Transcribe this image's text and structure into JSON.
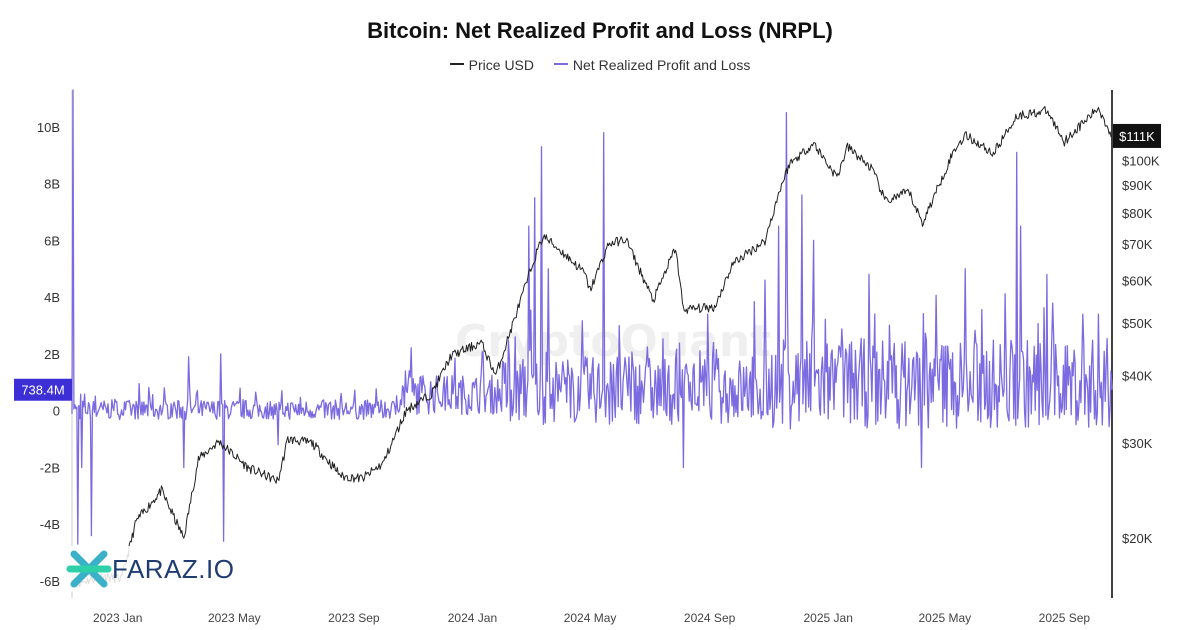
{
  "chart_data": {
    "type": "line",
    "title": "Bitcoin: Net Realized Profit and Loss (NRPL)",
    "legend": [
      {
        "name": "Price USD",
        "color": "#222222"
      },
      {
        "name": "Net Realized Profit and Loss",
        "color": "#7b6ae0"
      }
    ],
    "legend_position": "top-center",
    "x_ticks": [
      "2023 Jan",
      "2023 May",
      "2023 Sep",
      "2024 Jan",
      "2024 May",
      "2024 Sep",
      "2025 Jan",
      "2025 May",
      "2025 Sep"
    ],
    "x_range": [
      "2022-11-15",
      "2025-10-20"
    ],
    "y_left": {
      "ticks": [
        "10B",
        "8B",
        "6B",
        "4B",
        "2B",
        "0",
        "-2B",
        "-4B",
        "-6B"
      ],
      "values": [
        10,
        8,
        6,
        4,
        2,
        0,
        -2,
        -4,
        -6
      ],
      "range_billion": [
        -6.6,
        11.3
      ]
    },
    "y_right": {
      "scale": "log",
      "ticks": [
        "$100K",
        "$90K",
        "$80K",
        "$70K",
        "$60K",
        "$50K",
        "$40K",
        "$30K",
        "$20K"
      ],
      "values": [
        100000,
        90000,
        80000,
        70000,
        60000,
        50000,
        40000,
        30000,
        20000
      ],
      "range_usd": [
        15500,
        135000
      ]
    },
    "last_value_labels": {
      "nrpl": "738.4M",
      "price": "$111K"
    },
    "series": [
      {
        "name": "Price USD",
        "unit": "USD",
        "color": "#222222",
        "points": [
          [
            "2022-11-20",
            16500
          ],
          [
            "2022-12-15",
            17000
          ],
          [
            "2023-01-05",
            16800
          ],
          [
            "2023-01-20",
            21500
          ],
          [
            "2023-02-15",
            24500
          ],
          [
            "2023-03-10",
            20000
          ],
          [
            "2023-03-25",
            28000
          ],
          [
            "2023-04-15",
            30200
          ],
          [
            "2023-05-15",
            27000
          ],
          [
            "2023-06-15",
            25500
          ],
          [
            "2023-06-25",
            30500
          ],
          [
            "2023-07-20",
            30000
          ],
          [
            "2023-08-20",
            26000
          ],
          [
            "2023-09-10",
            25800
          ],
          [
            "2023-10-01",
            27500
          ],
          [
            "2023-10-25",
            34500
          ],
          [
            "2023-11-20",
            37000
          ],
          [
            "2023-12-10",
            43500
          ],
          [
            "2024-01-10",
            46000
          ],
          [
            "2024-01-25",
            40000
          ],
          [
            "2024-02-15",
            52000
          ],
          [
            "2024-03-05",
            66000
          ],
          [
            "2024-03-14",
            72500
          ],
          [
            "2024-04-05",
            67000
          ],
          [
            "2024-04-25",
            62000
          ],
          [
            "2024-05-01",
            57500
          ],
          [
            "2024-05-20",
            70000
          ],
          [
            "2024-06-07",
            71500
          ],
          [
            "2024-07-05",
            55000
          ],
          [
            "2024-07-28",
            69000
          ],
          [
            "2024-08-05",
            53000
          ],
          [
            "2024-09-06",
            53500
          ],
          [
            "2024-09-25",
            64500
          ],
          [
            "2024-10-28",
            71000
          ],
          [
            "2024-11-12",
            88000
          ],
          [
            "2024-11-22",
            98500
          ],
          [
            "2024-12-17",
            107500
          ],
          [
            "2025-01-10",
            93000
          ],
          [
            "2025-01-21",
            106000
          ],
          [
            "2025-02-15",
            96500
          ],
          [
            "2025-03-01",
            84000
          ],
          [
            "2025-03-25",
            87500
          ],
          [
            "2025-04-08",
            76500
          ],
          [
            "2025-05-10",
            104000
          ],
          [
            "2025-05-22",
            111500
          ],
          [
            "2025-06-20",
            103000
          ],
          [
            "2025-07-14",
            121000
          ],
          [
            "2025-08-14",
            123500
          ],
          [
            "2025-09-01",
            108500
          ],
          [
            "2025-10-06",
            125000
          ],
          [
            "2025-10-20",
            111000
          ]
        ]
      },
      {
        "name": "Net Realized Profit and Loss",
        "unit": "billion USD",
        "color": "#7b6ae0",
        "spikes": [
          [
            "2022-11-16",
            11.3
          ],
          [
            "2022-11-21",
            -4.7
          ],
          [
            "2022-11-25",
            -2.0
          ],
          [
            "2022-12-05",
            -4.4
          ],
          [
            "2023-03-10",
            -2.0
          ],
          [
            "2023-03-15",
            1.9
          ],
          [
            "2023-04-17",
            2.0
          ],
          [
            "2023-04-20",
            -4.6
          ],
          [
            "2023-06-15",
            -1.2
          ],
          [
            "2023-10-24",
            1.4
          ],
          [
            "2023-12-06",
            1.2
          ],
          [
            "2024-01-10",
            1.3
          ],
          [
            "2024-02-14",
            2.6
          ],
          [
            "2024-02-28",
            6.5
          ],
          [
            "2024-03-05",
            7.5
          ],
          [
            "2024-03-12",
            9.3
          ],
          [
            "2024-03-19",
            5.0
          ],
          [
            "2024-04-12",
            1.5
          ],
          [
            "2024-05-15",
            9.8
          ],
          [
            "2024-08-05",
            -2.0
          ],
          [
            "2024-10-28",
            4.6
          ],
          [
            "2024-11-11",
            6.5
          ],
          [
            "2024-11-19",
            10.5
          ],
          [
            "2024-12-05",
            7.6
          ],
          [
            "2024-12-17",
            6.0
          ],
          [
            "2025-01-20",
            2.0
          ],
          [
            "2025-04-07",
            -2.0
          ],
          [
            "2025-05-22",
            5.0
          ],
          [
            "2025-07-14",
            9.1
          ],
          [
            "2025-07-18",
            6.5
          ],
          [
            "2025-08-14",
            4.8
          ],
          [
            "2025-09-20",
            3.4
          ],
          [
            "2025-10-06",
            3.4
          ],
          [
            "2025-10-10",
            -0.5
          ],
          [
            "2025-10-20",
            0.74
          ]
        ]
      }
    ]
  },
  "watermark": "CryptoQuant",
  "logo": {
    "text": "FARAZ.IO",
    "icon": "asterisk-x-icon"
  }
}
